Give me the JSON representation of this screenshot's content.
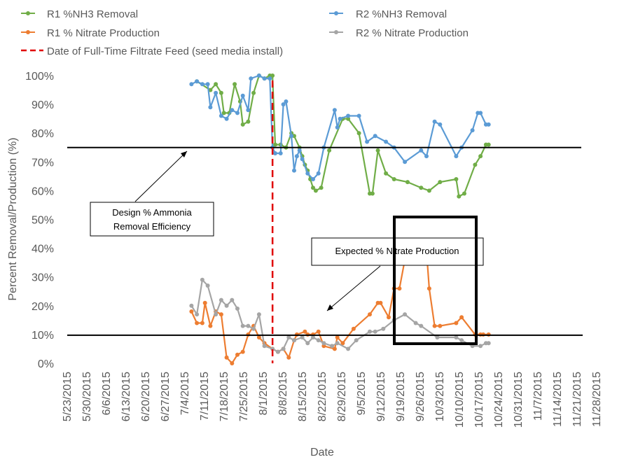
{
  "chart_data": {
    "type": "line",
    "xlabel": "Date",
    "ylabel": "Percent Removal/Production (%)",
    "ylim": [
      0,
      100
    ],
    "yticks": [
      "0%",
      "10%",
      "20%",
      "30%",
      "40%",
      "50%",
      "60%",
      "70%",
      "80%",
      "90%",
      "100%"
    ],
    "xticks": [
      "5/23/2015",
      "5/30/2015",
      "6/6/2015",
      "6/13/2015",
      "6/20/2015",
      "6/27/2015",
      "7/4/2015",
      "7/11/2015",
      "7/18/2015",
      "7/25/2015",
      "8/1/2015",
      "8/8/2015",
      "8/15/2015",
      "8/22/2015",
      "8/29/2015",
      "9/5/2015",
      "9/12/2015",
      "9/19/2015",
      "9/26/2015",
      "10/3/2015",
      "10/10/2015",
      "10/17/2015",
      "10/24/2015",
      "10/31/2015",
      "11/7/2015",
      "11/14/2015",
      "11/21/2015",
      "11/28/2015"
    ],
    "xlim": [
      "2015-05-23",
      "2015-12-05"
    ],
    "grid": false,
    "legend_position": "top",
    "legend": [
      {
        "label": "R1 %NH3 Removal",
        "color": "#70ad47"
      },
      {
        "label": "R2 %NH3 Removal",
        "color": "#5b9bd5"
      },
      {
        "label": "R1 % Nitrate Production",
        "color": "#ed7d31"
      },
      {
        "label": "R2 % Nitrate Production",
        "color": "#a5a5a5"
      },
      {
        "label": "Date of Full-Time Filtrate Feed (seed media install)",
        "color": "#e00000"
      }
    ],
    "series": [
      {
        "name": "R1 %NH3 Removal",
        "color": "#70ad47",
        "points": [
          [
            "2015-07-10",
            98
          ],
          [
            "2015-07-15",
            95
          ],
          [
            "2015-07-17",
            97
          ],
          [
            "2015-07-19",
            94
          ],
          [
            "2015-07-20",
            87
          ],
          [
            "2015-07-22",
            87
          ],
          [
            "2015-07-24",
            97
          ],
          [
            "2015-07-26",
            91
          ],
          [
            "2015-07-27",
            83
          ],
          [
            "2015-07-29",
            84
          ],
          [
            "2015-07-31",
            94
          ],
          [
            "2015-08-02",
            100
          ],
          [
            "2015-08-04",
            99
          ],
          [
            "2015-08-06",
            100
          ],
          [
            "2015-08-07",
            100
          ],
          [
            "2015-08-08",
            76
          ],
          [
            "2015-08-10",
            76
          ],
          [
            "2015-08-12",
            75
          ],
          [
            "2015-08-14",
            80
          ],
          [
            "2015-08-15",
            79
          ],
          [
            "2015-08-17",
            75
          ],
          [
            "2015-08-18",
            72
          ],
          [
            "2015-08-19",
            69
          ],
          [
            "2015-08-20",
            67
          ],
          [
            "2015-08-21",
            64
          ],
          [
            "2015-08-22",
            61
          ],
          [
            "2015-08-23",
            60
          ],
          [
            "2015-08-25",
            61
          ],
          [
            "2015-08-28",
            74
          ],
          [
            "2015-09-02",
            85
          ],
          [
            "2015-09-04",
            85
          ],
          [
            "2015-09-08",
            80
          ],
          [
            "2015-09-12",
            59
          ],
          [
            "2015-09-13",
            59
          ],
          [
            "2015-09-15",
            74
          ],
          [
            "2015-09-18",
            66
          ],
          [
            "2015-09-21",
            64
          ],
          [
            "2015-09-26",
            63
          ],
          [
            "2015-10-01",
            61
          ],
          [
            "2015-10-04",
            60
          ],
          [
            "2015-10-08",
            63
          ],
          [
            "2015-10-14",
            64
          ],
          [
            "2015-10-15",
            58
          ],
          [
            "2015-10-17",
            59
          ],
          [
            "2015-10-21",
            69
          ],
          [
            "2015-10-23",
            72
          ],
          [
            "2015-10-25",
            76
          ],
          [
            "2015-10-26",
            76
          ]
        ]
      },
      {
        "name": "R2 %NH3 Removal",
        "color": "#5b9bd5",
        "points": [
          [
            "2015-07-08",
            97
          ],
          [
            "2015-07-10",
            98
          ],
          [
            "2015-07-12",
            97
          ],
          [
            "2015-07-14",
            97
          ],
          [
            "2015-07-15",
            89
          ],
          [
            "2015-07-17",
            94
          ],
          [
            "2015-07-19",
            86
          ],
          [
            "2015-07-21",
            85
          ],
          [
            "2015-07-23",
            88
          ],
          [
            "2015-07-25",
            87
          ],
          [
            "2015-07-27",
            93
          ],
          [
            "2015-07-29",
            88
          ],
          [
            "2015-07-30",
            99
          ],
          [
            "2015-08-02",
            100
          ],
          [
            "2015-08-04",
            99
          ],
          [
            "2015-08-06",
            99
          ],
          [
            "2015-08-07",
            75
          ],
          [
            "2015-08-08",
            73
          ],
          [
            "2015-08-10",
            73
          ],
          [
            "2015-08-11",
            90
          ],
          [
            "2015-08-12",
            91
          ],
          [
            "2015-08-14",
            79
          ],
          [
            "2015-08-15",
            67
          ],
          [
            "2015-08-16",
            72
          ],
          [
            "2015-08-17",
            74
          ],
          [
            "2015-08-18",
            71
          ],
          [
            "2015-08-20",
            66
          ],
          [
            "2015-08-22",
            64
          ],
          [
            "2015-08-24",
            66
          ],
          [
            "2015-08-26",
            75
          ],
          [
            "2015-08-30",
            88
          ],
          [
            "2015-08-31",
            82
          ],
          [
            "2015-09-01",
            85
          ],
          [
            "2015-09-04",
            86
          ],
          [
            "2015-09-08",
            86
          ],
          [
            "2015-09-11",
            77
          ],
          [
            "2015-09-14",
            79
          ],
          [
            "2015-09-18",
            77
          ],
          [
            "2015-09-21",
            75
          ],
          [
            "2015-09-25",
            70
          ],
          [
            "2015-10-01",
            74
          ],
          [
            "2015-10-03",
            72
          ],
          [
            "2015-10-06",
            84
          ],
          [
            "2015-10-08",
            83
          ],
          [
            "2015-10-14",
            72
          ],
          [
            "2015-10-16",
            75
          ],
          [
            "2015-10-20",
            81
          ],
          [
            "2015-10-22",
            87
          ],
          [
            "2015-10-23",
            87
          ],
          [
            "2015-10-25",
            83
          ],
          [
            "2015-10-26",
            83
          ]
        ]
      },
      {
        "name": "R1 % Nitrate Production",
        "color": "#ed7d31",
        "points": [
          [
            "2015-07-08",
            18
          ],
          [
            "2015-07-10",
            14
          ],
          [
            "2015-07-12",
            14
          ],
          [
            "2015-07-13",
            21
          ],
          [
            "2015-07-15",
            13
          ],
          [
            "2015-07-17",
            18
          ],
          [
            "2015-07-19",
            17
          ],
          [
            "2015-07-21",
            2
          ],
          [
            "2015-07-23",
            0
          ],
          [
            "2015-07-25",
            3
          ],
          [
            "2015-07-27",
            4
          ],
          [
            "2015-07-29",
            10
          ],
          [
            "2015-07-31",
            13
          ],
          [
            "2015-08-02",
            9
          ],
          [
            "2015-08-04",
            7
          ],
          [
            "2015-08-07",
            5
          ],
          [
            "2015-08-09",
            4
          ],
          [
            "2015-08-11",
            5
          ],
          [
            "2015-08-13",
            2
          ],
          [
            "2015-08-15",
            8
          ],
          [
            "2015-08-16",
            10
          ],
          [
            "2015-08-19",
            11
          ],
          [
            "2015-08-20",
            10
          ],
          [
            "2015-08-22",
            10
          ],
          [
            "2015-08-24",
            11
          ],
          [
            "2015-08-26",
            6
          ],
          [
            "2015-08-30",
            5
          ],
          [
            "2015-08-31",
            9
          ],
          [
            "2015-09-02",
            7
          ],
          [
            "2015-09-06",
            12
          ],
          [
            "2015-09-12",
            17
          ],
          [
            "2015-09-15",
            21
          ],
          [
            "2015-09-16",
            21
          ],
          [
            "2015-09-19",
            16
          ],
          [
            "2015-09-21",
            26
          ],
          [
            "2015-09-23",
            26
          ],
          [
            "2015-09-25",
            36
          ],
          [
            "2015-09-27",
            36
          ],
          [
            "2015-10-02",
            39
          ],
          [
            "2015-10-03",
            39
          ],
          [
            "2015-10-04",
            26
          ],
          [
            "2015-10-06",
            13
          ],
          [
            "2015-10-08",
            13
          ],
          [
            "2015-10-14",
            14
          ],
          [
            "2015-10-16",
            16
          ],
          [
            "2015-10-21",
            10
          ],
          [
            "2015-10-23",
            10
          ],
          [
            "2015-10-24",
            10
          ],
          [
            "2015-10-26",
            10
          ]
        ]
      },
      {
        "name": "R2 % Nitrate Production",
        "color": "#a5a5a5",
        "points": [
          [
            "2015-07-08",
            20
          ],
          [
            "2015-07-10",
            17
          ],
          [
            "2015-07-12",
            29
          ],
          [
            "2015-07-14",
            27
          ],
          [
            "2015-07-17",
            17
          ],
          [
            "2015-07-19",
            22
          ],
          [
            "2015-07-21",
            20
          ],
          [
            "2015-07-23",
            22
          ],
          [
            "2015-07-25",
            19
          ],
          [
            "2015-07-27",
            13
          ],
          [
            "2015-07-29",
            13
          ],
          [
            "2015-07-31",
            12
          ],
          [
            "2015-08-02",
            17
          ],
          [
            "2015-08-04",
            6
          ],
          [
            "2015-08-07",
            5
          ],
          [
            "2015-08-09",
            4
          ],
          [
            "2015-08-11",
            5
          ],
          [
            "2015-08-13",
            9
          ],
          [
            "2015-08-15",
            8
          ],
          [
            "2015-08-18",
            9
          ],
          [
            "2015-08-20",
            7
          ],
          [
            "2015-08-22",
            9
          ],
          [
            "2015-08-24",
            8
          ],
          [
            "2015-08-26",
            7
          ],
          [
            "2015-08-29",
            6
          ],
          [
            "2015-08-31",
            7
          ],
          [
            "2015-09-04",
            5
          ],
          [
            "2015-09-07",
            8
          ],
          [
            "2015-09-12",
            11
          ],
          [
            "2015-09-14",
            11
          ],
          [
            "2015-09-17",
            12
          ],
          [
            "2015-09-21",
            15
          ],
          [
            "2015-09-25",
            17
          ],
          [
            "2015-09-29",
            14
          ],
          [
            "2015-10-01",
            13
          ],
          [
            "2015-10-07",
            9
          ],
          [
            "2015-10-14",
            9
          ],
          [
            "2015-10-16",
            8
          ],
          [
            "2015-10-20",
            6
          ],
          [
            "2015-10-23",
            6
          ],
          [
            "2015-10-25",
            7
          ],
          [
            "2015-10-26",
            7
          ]
        ]
      }
    ],
    "reference_lines": {
      "design_removal_pct": 75,
      "expected_nitrate_pct": 10,
      "filtrate_feed_date": "2015-08-07"
    },
    "annotations": [
      {
        "text_lines": [
          "Design % Ammonia",
          "Removal Efficiency"
        ]
      },
      {
        "text_lines": [
          "Expected % Nitrate Production"
        ]
      }
    ]
  }
}
